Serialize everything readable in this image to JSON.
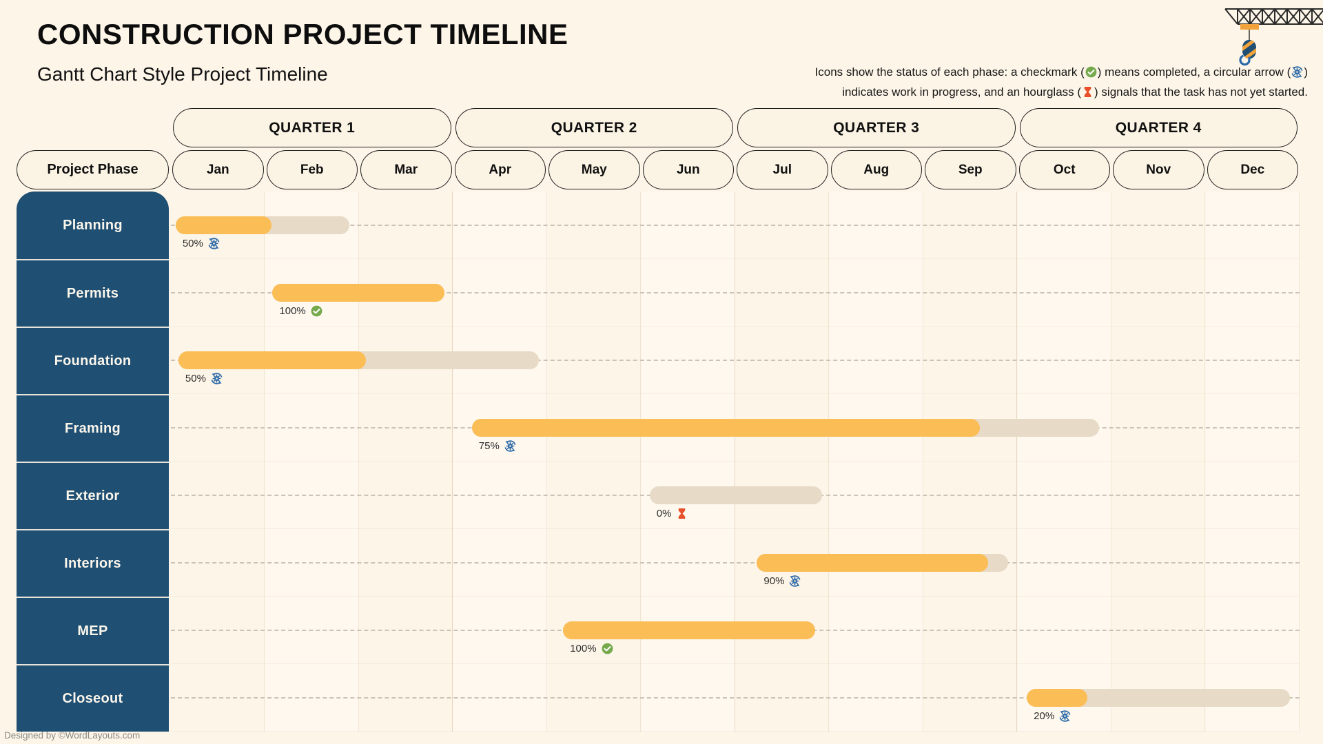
{
  "header": {
    "title": "CONSTRUCTION PROJECT TIMELINE",
    "subtitle": "Gantt Chart Style Project Timeline"
  },
  "legend": {
    "l1a": "Icons show the status of each phase: a checkmark (",
    "l1b": ") means completed, a circular arrow (",
    "l1c": ")",
    "l2a": "indicates work in progress, and an hourglass (",
    "l2b": ") signals that the task has not yet started.",
    "icon_names": {
      "completed": "check-circle-icon",
      "in_progress": "circular-arrow-gear-icon",
      "not_started": "hourglass-icon"
    }
  },
  "table": {
    "phase_header": "Project Phase",
    "quarters": [
      "QUARTER 1",
      "QUARTER 2",
      "QUARTER 3",
      "QUARTER 4"
    ],
    "months": [
      "Jan",
      "Feb",
      "Mar",
      "Apr",
      "May",
      "Jun",
      "Jul",
      "Aug",
      "Sep",
      "Oct",
      "Nov",
      "Dec"
    ]
  },
  "chart_data": {
    "type": "bar",
    "variant": "gantt",
    "title": "CONSTRUCTION PROJECT TIMELINE",
    "x_axis": {
      "unit": "months",
      "labels": [
        "Jan",
        "Feb",
        "Mar",
        "Apr",
        "May",
        "Jun",
        "Jul",
        "Aug",
        "Sep",
        "Oct",
        "Nov",
        "Dec"
      ],
      "range_months": [
        0,
        12
      ]
    },
    "phases": [
      {
        "label": "Planning",
        "start_month": 0.05,
        "end_month": 1.9,
        "progress_label": "50%",
        "progress": 0.5,
        "fill_fraction": 0.55,
        "status": "in-progress"
      },
      {
        "label": "Permits",
        "start_month": 1.08,
        "end_month": 2.91,
        "progress_label": "100%",
        "progress": 1.0,
        "fill_fraction": 1.0,
        "status": "completed"
      },
      {
        "label": "Foundation",
        "start_month": 0.08,
        "end_month": 3.91,
        "progress_label": "50%",
        "progress": 0.5,
        "fill_fraction": 0.52,
        "status": "in-progress"
      },
      {
        "label": "Framing",
        "start_month": 3.2,
        "end_month": 9.87,
        "progress_label": "75%",
        "progress": 0.75,
        "fill_fraction": 0.81,
        "status": "in-progress"
      },
      {
        "label": "Exterior",
        "start_month": 5.09,
        "end_month": 6.92,
        "progress_label": "0%",
        "progress": 0.0,
        "fill_fraction": 0.0,
        "status": "not-started"
      },
      {
        "label": "Interiors",
        "start_month": 6.23,
        "end_month": 8.9,
        "progress_label": "90%",
        "progress": 0.9,
        "fill_fraction": 0.92,
        "status": "in-progress"
      },
      {
        "label": "MEP",
        "start_month": 4.17,
        "end_month": 6.85,
        "progress_label": "100%",
        "progress": 1.0,
        "fill_fraction": 1.0,
        "status": "completed"
      },
      {
        "label": "Closeout",
        "start_month": 9.1,
        "end_month": 11.9,
        "progress_label": "20%",
        "progress": 0.2,
        "fill_fraction": 0.23,
        "status": "in-progress"
      }
    ]
  },
  "colors": {
    "page_bg": "#FDF5E8",
    "bar_fill": "#FBBD55",
    "bar_track": "#E7DAC6",
    "sidebar": "#1F4F73",
    "pill_bg": "#FBF4E5",
    "pill_border": "#1D1D1D",
    "status_completed": "#76A94C",
    "status_in_progress": "#2E6BA8",
    "status_not_started": "#E8502B"
  },
  "footer": {
    "credit": "Designed by ©WordLayouts.com"
  }
}
